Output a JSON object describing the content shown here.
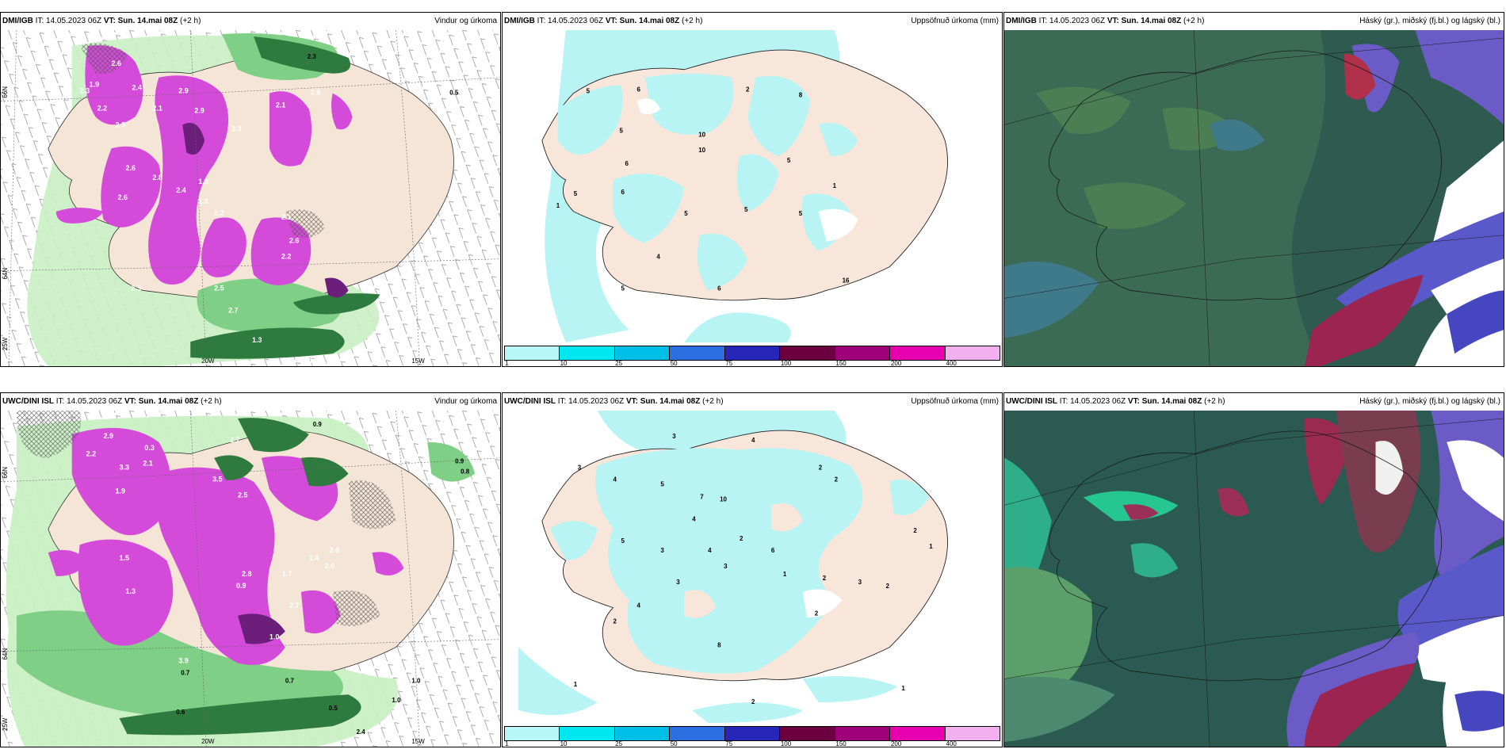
{
  "rows": [
    {
      "model": "DMI/IGB",
      "it": "IT: 14.05.2023 06Z",
      "vt_label": "VT:",
      "vt": "Sun. 14.mai 08Z",
      "lead": "(+2 h)"
    },
    {
      "model": "UWC/DINI ISL",
      "it": "IT: 14.05.2023 06Z",
      "vt_label": "VT:",
      "vt": "Sun. 14.mai 08Z",
      "lead": "(+2 h)"
    }
  ],
  "products": {
    "wind": "Vindur og úrkoma",
    "accum": "Uppsöfnuð úrkoma (mm)",
    "cloud": "Háský (gr.), miðský (fj.bl.) og lágský (bl.)"
  },
  "axes": {
    "lat66": "66N",
    "lat64": "64N",
    "lon25": "25W",
    "lon20": "20W",
    "lon15": "15W"
  },
  "colorbar": {
    "ticks": [
      "1",
      "10",
      "25",
      "50",
      "75",
      "100",
      "150",
      "200",
      "400"
    ],
    "colors": [
      "#b8f7f7",
      "#00e8ef",
      "#00bfe6",
      "#2b6fe3",
      "#2626b8",
      "#6b003f",
      "#a0007a",
      "#e600b0",
      "#f2b0ee"
    ]
  },
  "wind_labels_top": [
    "2.6",
    "2.9",
    "1.9",
    "2.4",
    "2.3",
    "2.2",
    "2.1",
    "2.3",
    "2.9",
    "2.1",
    "1.3",
    "2.6",
    "2.8",
    "2.4",
    "2.6",
    "1.3",
    "2.2",
    "2.1",
    "2.6",
    "2.2",
    "2.5",
    "2.7",
    "2.3",
    "1.3",
    "1.1",
    "0.5",
    "2.3",
    "2.9",
    "3.3"
  ],
  "wind_labels_bottom": [
    "2.9",
    "2.2",
    "0.3",
    "3.3",
    "1.9",
    "2.1",
    "2.7",
    "3.5",
    "2.5",
    "2.0",
    "1.5",
    "2.7",
    "1.3",
    "0.9",
    "1.0",
    "1.7",
    "2.8",
    "1.4",
    "2.0",
    "0.7",
    "0.6",
    "0.5",
    "0.7",
    "1.0",
    "1.0",
    "0.9",
    "0.8",
    "0.9",
    "2.4",
    "3.9"
  ],
  "accum_labels_top": [
    "5",
    "6",
    "2",
    "6",
    "8",
    "5",
    "10",
    "5",
    "6",
    "5",
    "1",
    "5",
    "5",
    "4",
    "5",
    "6",
    "16",
    "10",
    "5",
    "1"
  ],
  "accum_labels_bottom": [
    "3",
    "4",
    "5",
    "3",
    "2",
    "2",
    "4",
    "4",
    "1",
    "2",
    "5",
    "3",
    "4",
    "3",
    "7",
    "10",
    "6",
    "2",
    "1",
    "2",
    "3",
    "4",
    "8",
    "2",
    "1",
    "2",
    "3",
    "2",
    "1",
    "2"
  ]
}
